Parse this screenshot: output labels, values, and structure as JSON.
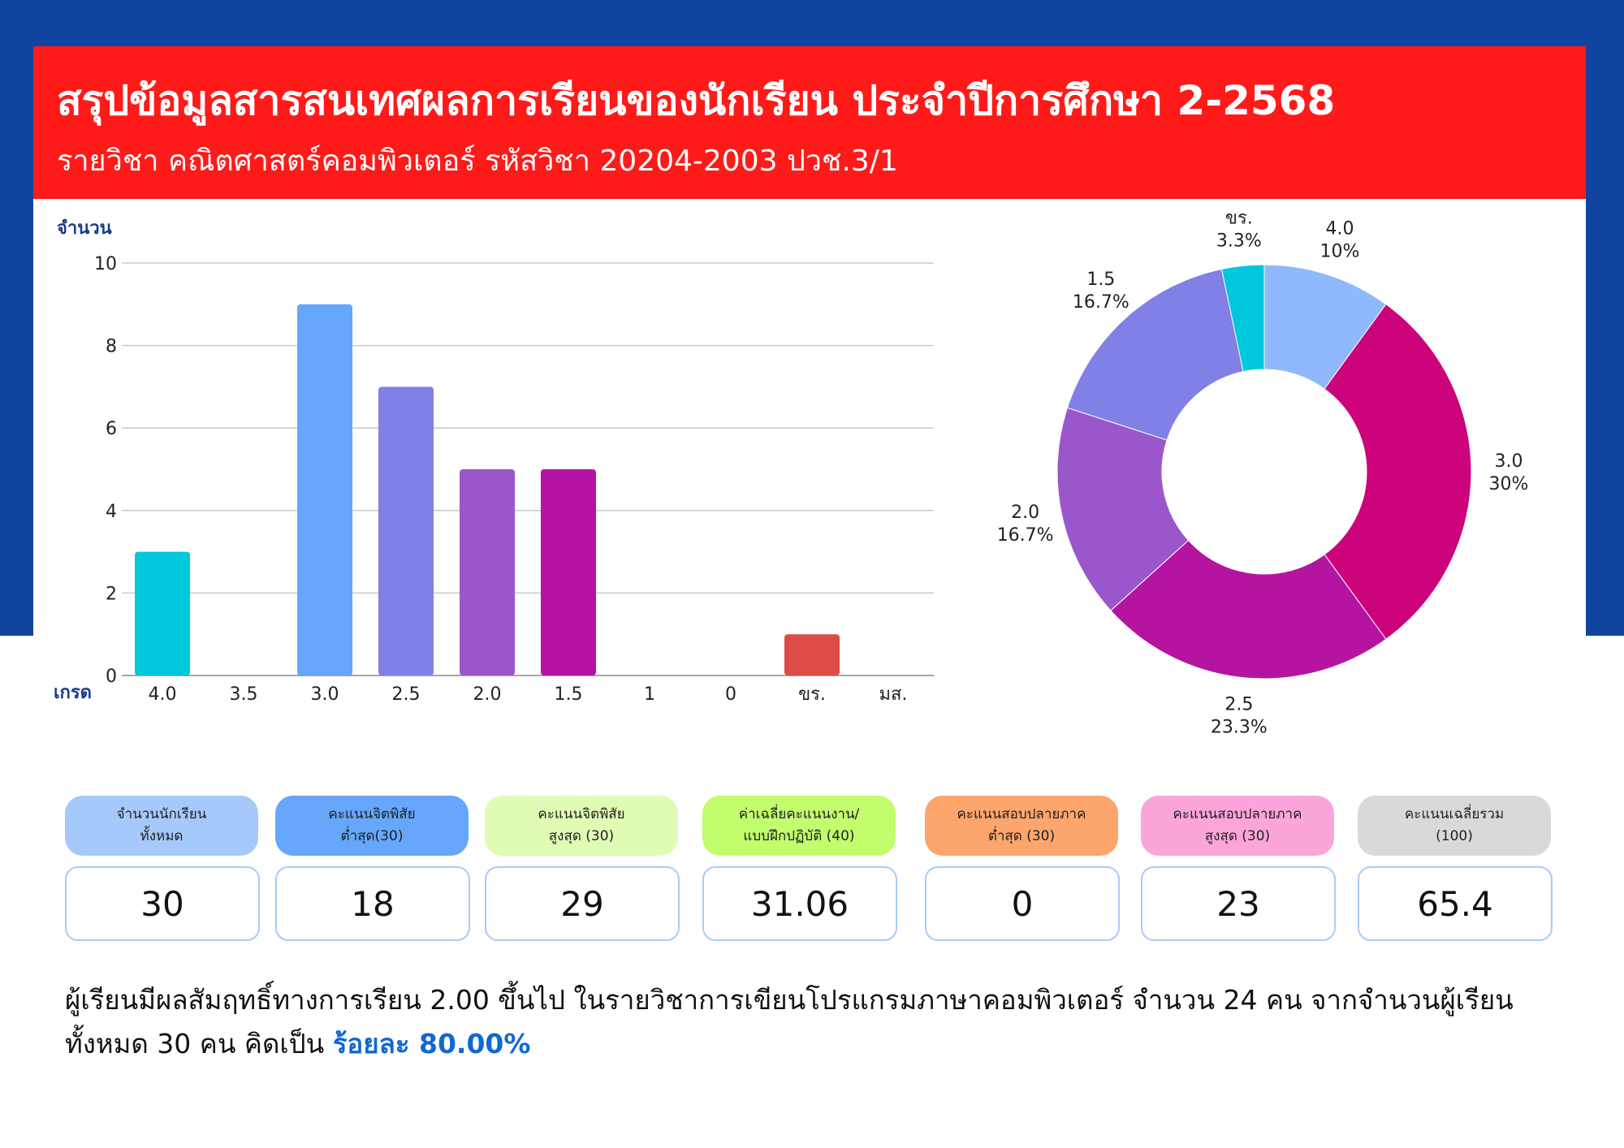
{
  "header": {
    "title": "สรุปข้อมูลสารสนเทศผลการเรียนของนักเรียน ประจำปีการศึกษา 2-2568",
    "subtitle": "รายวิชา  คณิตศาสตร์คอมพิวเตอร์  รหัสวิชา 20204-2003 ปวช.3/1"
  },
  "chart_data": [
    {
      "type": "bar",
      "ylabel": "จำนวน",
      "xlabel": "เกรด",
      "ylim": [
        0,
        10
      ],
      "yticks": [
        "0",
        "2",
        "4",
        "6",
        "8",
        "10"
      ],
      "categories": [
        "4.0",
        "3.5",
        "3.0",
        "2.5",
        "2.0",
        "1.5",
        "1",
        "0",
        "ขร.",
        "มส."
      ],
      "values": [
        3,
        0,
        9,
        7,
        5,
        5,
        0,
        0,
        1,
        0
      ],
      "colors": [
        "#00c8dc",
        "#00c8dc",
        "#66a6fb",
        "#8081e6",
        "#9a57cc",
        "#b513a4",
        "#b513a4",
        "#b513a4",
        "#de4c48",
        "#de4c48"
      ],
      "grid": true,
      "legend": "none"
    },
    {
      "type": "pie",
      "style": "donut",
      "slices": [
        {
          "label": "4.0",
          "value": 10,
          "pct": "10%",
          "color": "#8fb9fc"
        },
        {
          "label": "3.0",
          "value": 30,
          "pct": "30%",
          "color": "#cc037b"
        },
        {
          "label": "2.5",
          "value": 23.3,
          "pct": "23.3%",
          "color": "#b514a0"
        },
        {
          "label": "2.0",
          "value": 16.7,
          "pct": "16.7%",
          "color": "#9a57cc"
        },
        {
          "label": "1.5",
          "value": 16.7,
          "pct": "16.7%",
          "color": "#8080e6"
        },
        {
          "label": "ขร.",
          "value": 3.3,
          "pct": "3.3%",
          "color": "#00c8dc"
        }
      ]
    }
  ],
  "stats": [
    {
      "label": "จำนวนนักเรียน\nทั้งหมด",
      "value": "30",
      "color": "#a5c9fb"
    },
    {
      "label": "คะแนนจิตพิสัย\nต่ำสุด(30)",
      "value": "18",
      "color": "#66a6fb"
    },
    {
      "label": "คะแนนจิตพิสัย\nสูงสุด (30)",
      "value": "29",
      "color": "#e0fbb4"
    },
    {
      "label": "ค่าเฉลี่ยคะแนนงาน/\nแบบฝึกปฏิบัติ (40)",
      "value": "31.06",
      "color": "#c2fd6d"
    },
    {
      "label": "คะแนนสอบปลายภาค\nต่ำสุด (30)",
      "value": "0",
      "color": "#fca56c"
    },
    {
      "label": "คะแนนสอบปลายภาค\nสูงสุด (30)",
      "value": "23",
      "color": "#fba5da"
    },
    {
      "label": "คะแนนเฉลี่ยรวม\n(100)",
      "value": "65.4",
      "color": "#d9d9d9"
    }
  ],
  "summary": {
    "text": "ผู้เรียนมีผลสัมฤทธิ์ทางการเรียน 2.00 ขึ้นไป ในรายวิชาการเขียนโปรแกรมภาษาคอมพิวเตอร์ จำนวน 24 คน จากจำนวนผู้เรียนทั้งหมด 30 คน คิดเป็น ",
    "highlight": "ร้อยละ 80.00%"
  }
}
